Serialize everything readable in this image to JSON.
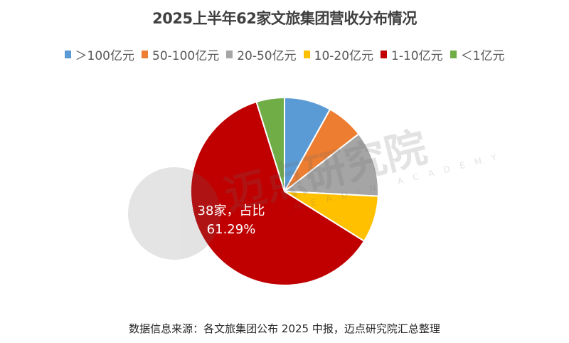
{
  "title": "2025上半年62家文旅集团营收分布情况",
  "legend": [
    {
      "label": "＞100亿元",
      "color": "#5B9BD5"
    },
    {
      "label": "50-100亿元",
      "color": "#ED7D31"
    },
    {
      "label": "20-50亿元",
      "color": "#A5A5A5"
    },
    {
      "label": "10-20亿元",
      "color": "#FFC000"
    },
    {
      "label": "1-10亿元",
      "color": "#C00000"
    },
    {
      "label": "＜1亿元",
      "color": "#70AD47"
    }
  ],
  "data_label": {
    "line1": "38家，占比",
    "line2": "61.29%"
  },
  "source": "数据信息来源：各文旅集团公布 2025 中报，迈点研究院汇总整理",
  "watermark": {
    "text": "迈点研究院",
    "subtext": "MEADIN ACADEMY"
  },
  "chart_data": {
    "type": "pie",
    "title": "2025上半年62家文旅集团营收分布情况",
    "categories": [
      "＞100亿元",
      "50-100亿元",
      "20-50亿元",
      "10-20亿元",
      "1-10亿元",
      "＜1亿元"
    ],
    "values": [
      5,
      4,
      7,
      5,
      38,
      3
    ],
    "total": 62,
    "colors": [
      "#5B9BD5",
      "#ED7D31",
      "#A5A5A5",
      "#FFC000",
      "#C00000",
      "#70AD47"
    ],
    "annotations": [
      {
        "category": "1-10亿元",
        "text": "38家，占比 61.29%"
      }
    ],
    "legend_position": "top",
    "start_angle": 0,
    "direction": "clockwise"
  }
}
